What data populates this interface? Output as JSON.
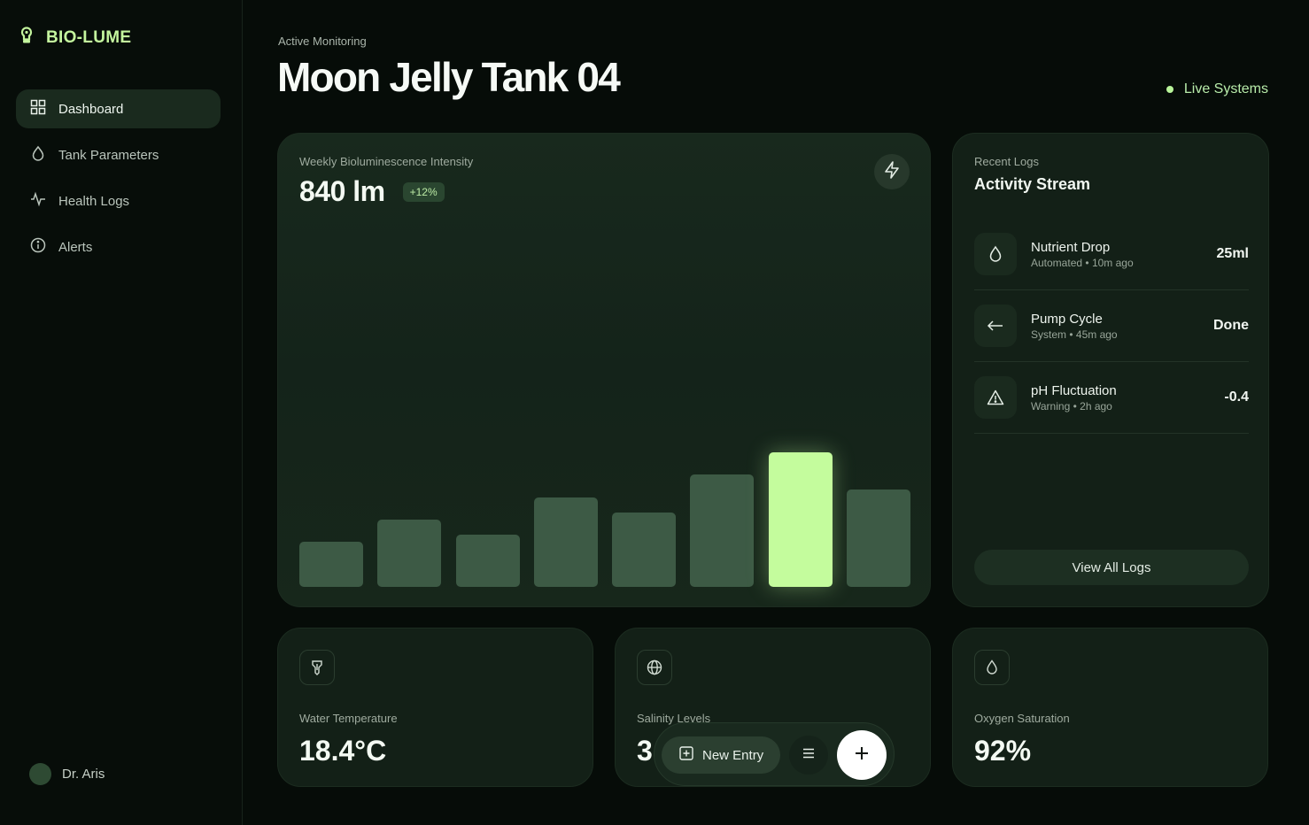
{
  "brand": {
    "name": "BIO-LUME"
  },
  "nav": {
    "items": [
      {
        "label": "Dashboard",
        "icon": "grid-icon",
        "active": true
      },
      {
        "label": "Tank Parameters",
        "icon": "drop-icon"
      },
      {
        "label": "Health Logs",
        "icon": "pulse-icon"
      },
      {
        "label": "Alerts",
        "icon": "info-icon"
      }
    ]
  },
  "user": {
    "name": "Dr. Aris"
  },
  "header": {
    "subtitle": "Active Monitoring",
    "title": "Moon Jelly Tank 04",
    "status": "Live Systems"
  },
  "chart": {
    "label": "Weekly Bioluminescence Intensity",
    "value": "840 lm",
    "badge": "+12%"
  },
  "chart_data": {
    "type": "bar",
    "values": [
      48,
      72,
      56,
      96,
      80,
      120,
      144,
      104
    ],
    "highlight_index": 6,
    "colors": {
      "bar": "#3d5a45",
      "highlight": "#c4fc9d"
    }
  },
  "logs": {
    "label": "Recent Logs",
    "title": "Activity Stream",
    "items": [
      {
        "name": "Nutrient Drop",
        "source": "Automated",
        "time": "10m ago",
        "value": "25ml",
        "icon": "drop-icon"
      },
      {
        "name": "Pump Cycle",
        "source": "System",
        "time": "45m ago",
        "value": "Done",
        "icon": "arrow-left-icon"
      },
      {
        "name": "pH Fluctuation",
        "source": "Warning",
        "time": "2h ago",
        "value": "-0.4",
        "icon": "warning-icon"
      }
    ],
    "separator": "•",
    "view_all": "View All Logs"
  },
  "metrics": {
    "temperature": {
      "label": "Water Temperature",
      "value": "18.4°C",
      "icon": "thermometer-icon"
    },
    "salinity": {
      "label": "Salinity Levels",
      "value": "3",
      "icon": "globe-icon"
    },
    "oxygen": {
      "label": "Oxygen Saturation",
      "value": "92%",
      "icon": "drop-icon"
    }
  },
  "actions": {
    "new_entry": "New Entry"
  }
}
